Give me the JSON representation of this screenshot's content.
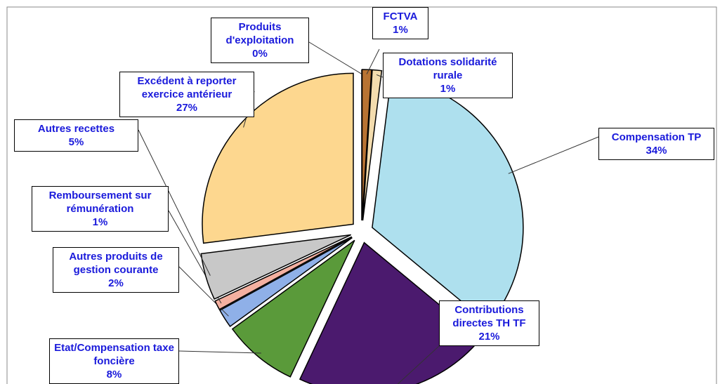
{
  "chart_data": {
    "type": "pie",
    "categories": [
      "Produits d'exploitation",
      "FCTVA",
      "Dotations solidarité rurale",
      "Compensation TP",
      "Contributions directes TH TF",
      "Etat/Compensation taxe foncière",
      "Autres produits de gestion courante",
      "Remboursement sur rémunération",
      "Autres recettes",
      "Excédent à reporter exercice antérieur"
    ],
    "values": [
      0,
      1,
      1,
      34,
      21,
      8,
      2,
      1,
      5,
      27
    ],
    "value_labels": [
      "0%",
      "1%",
      "1%",
      "34%",
      "21%",
      "8%",
      "2%",
      "1%",
      "5%",
      "27%"
    ],
    "colors": [
      "#1a1a1a",
      "#b87333",
      "#f3dcae",
      "#aee0ee",
      "#4b1a6e",
      "#5a9a3a",
      "#8fb0e8",
      "#f4b0a0",
      "#c8c8c8",
      "#fdd78f"
    ]
  }
}
